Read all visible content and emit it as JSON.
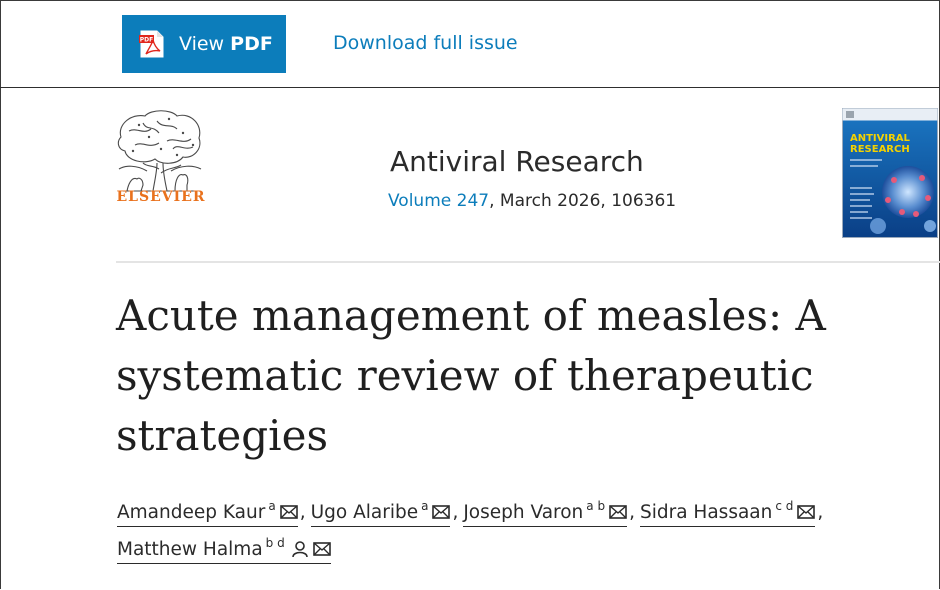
{
  "toolbar": {
    "view_pdf_prefix": "View ",
    "view_pdf_strong": "PDF",
    "download_label": "Download full issue",
    "pdf_icon_label": "PDF"
  },
  "journal": {
    "publisher": "ELSEVIER",
    "name": "Antiviral Research",
    "volume": "Volume 247",
    "issue_rest": ", March 2026, 106361",
    "cover_title_line1": "ANTIVIRAL",
    "cover_title_line2": "RESEARCH"
  },
  "article": {
    "title": "Acute management of measles: A systematic review of therapeutic strategies"
  },
  "authors": [
    {
      "name": "Amandeep Kaur",
      "affil": "a",
      "icons": [
        "mail-icon"
      ],
      "separator": ","
    },
    {
      "name": "Ugo Alaribe",
      "affil": "a",
      "icons": [
        "mail-icon"
      ],
      "separator": ","
    },
    {
      "name": "Joseph Varon",
      "affil": "a b",
      "icons": [
        "mail-icon"
      ],
      "separator": ","
    },
    {
      "name": "Sidra Hassaan",
      "affil": "c d",
      "icons": [
        "mail-icon"
      ],
      "separator": ","
    },
    {
      "name": "Matthew Halma",
      "affil": "b d",
      "icons": [
        "person-icon",
        "mail-icon"
      ],
      "separator": ""
    }
  ],
  "colors": {
    "accent": "#0c7dbb",
    "elsevier_orange": "#e9711c",
    "text": "#1f1f1f"
  }
}
